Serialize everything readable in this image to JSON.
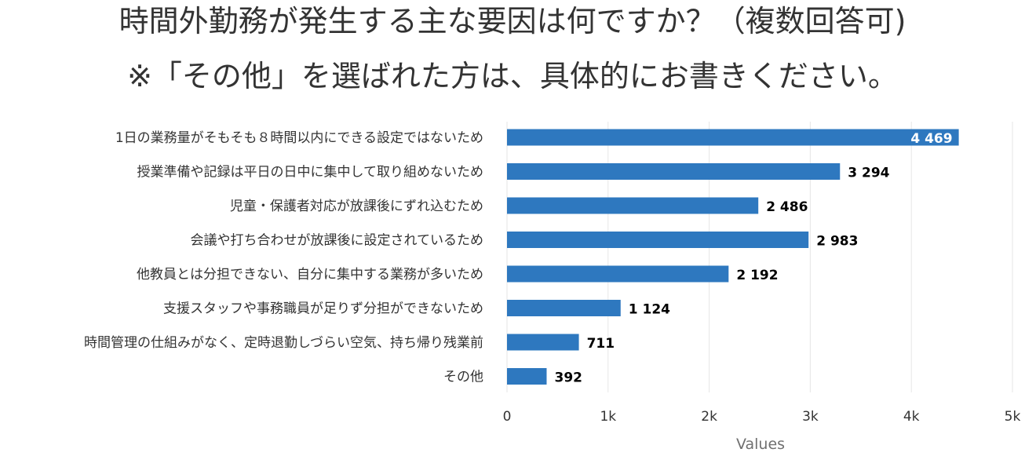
{
  "title": {
    "line1": "時間外勤務が発生する主な要因は何ですか？（複数回答可)",
    "line2": "※「その他」を選ばれた方は、具体的にお書きください。"
  },
  "chart_data": {
    "type": "bar",
    "orientation": "horizontal",
    "categories": [
      "1日の業務量がそもそも８時間以内にできる設定ではないため",
      "授業準備や記録は平日の日中に集中して取り組めないため",
      "児童・保護者対応が放課後にずれ込むため",
      "会議や打ち合わせが放課後に設定されているため",
      "他教員とは分担できない、自分に集中する業務が多いため",
      "支援スタッフや事務職員が足りず分担ができないため",
      "時間管理の仕組みがなく、定時退勤しづらい空気、持ち帰り残業前",
      "その他"
    ],
    "values": [
      4469,
      3294,
      2486,
      2983,
      2192,
      1124,
      711,
      392
    ],
    "value_labels": [
      "4 469",
      "3 294",
      "2 486",
      "2 983",
      "2 192",
      "1 124",
      "711",
      "392"
    ],
    "xlabel": "Values",
    "xlim": [
      0,
      5000
    ],
    "xticks": [
      0,
      1000,
      2000,
      3000,
      4000,
      5000
    ],
    "xtick_labels": [
      "0",
      "1k",
      "2k",
      "3k",
      "4k",
      "5k"
    ],
    "grid": true,
    "bar_color": "#2e78bf"
  }
}
